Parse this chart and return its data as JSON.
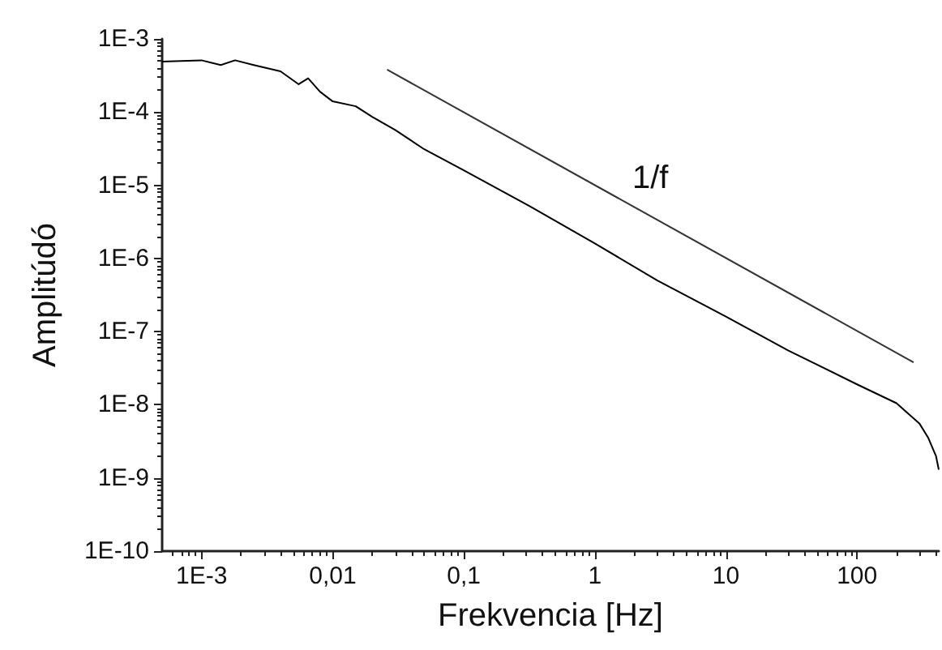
{
  "chart_data": {
    "type": "line",
    "xlabel": "Frekvencia [Hz]",
    "ylabel": "Amplitúdó",
    "log": "xy",
    "grid": false,
    "marker": "none",
    "line_style": "solid",
    "xlim": [
      0.0005,
      420
    ],
    "ylim": [
      1e-10,
      0.001
    ],
    "xticks": [
      {
        "value": 0.001,
        "label": "1E-3"
      },
      {
        "value": 0.01,
        "label": "0,01"
      },
      {
        "value": 0.1,
        "label": "0,1"
      },
      1,
      10,
      100
    ],
    "yticks": [
      {
        "value": 1e-10,
        "label": "1E-10"
      },
      {
        "value": 1e-09,
        "label": "1E-9"
      },
      {
        "value": 1e-08,
        "label": "1E-8"
      },
      {
        "value": 1e-07,
        "label": "1E-7"
      },
      {
        "value": 1e-06,
        "label": "1E-6"
      },
      {
        "value": 1e-05,
        "label": "1E-5"
      },
      {
        "value": 0.0001,
        "label": "1E-4"
      },
      {
        "value": 0.001,
        "label": "1E-3"
      }
    ],
    "series": [
      {
        "color": "#000000",
        "x": [
          0.0005,
          0.0007,
          0.001,
          0.0014,
          0.0018,
          0.0025,
          0.004,
          0.0055,
          0.0065,
          0.008,
          0.01,
          0.015,
          0.02,
          0.03,
          0.05,
          0.1,
          0.3,
          1,
          3,
          10,
          30,
          100,
          200,
          300,
          350,
          400,
          420
        ],
        "values": [
          0.00049,
          0.0005,
          0.00051,
          0.00044,
          0.00051,
          0.00044,
          0.00036,
          0.00024,
          0.00029,
          0.00019,
          0.00014,
          0.00012,
          8.6e-05,
          5.7e-05,
          3.1e-05,
          1.6e-05,
          5.5e-06,
          1.6e-06,
          5e-07,
          1.6e-07,
          5.5e-08,
          1.9e-08,
          1.05e-08,
          5.5e-09,
          3.5e-09,
          2e-09,
          1.3e-09
        ]
      },
      {
        "color": "#333333",
        "x": [
          0.026,
          270
        ],
        "values": [
          0.00038,
          3.8e-08
        ]
      }
    ],
    "annotations": [
      "1/f"
    ]
  }
}
